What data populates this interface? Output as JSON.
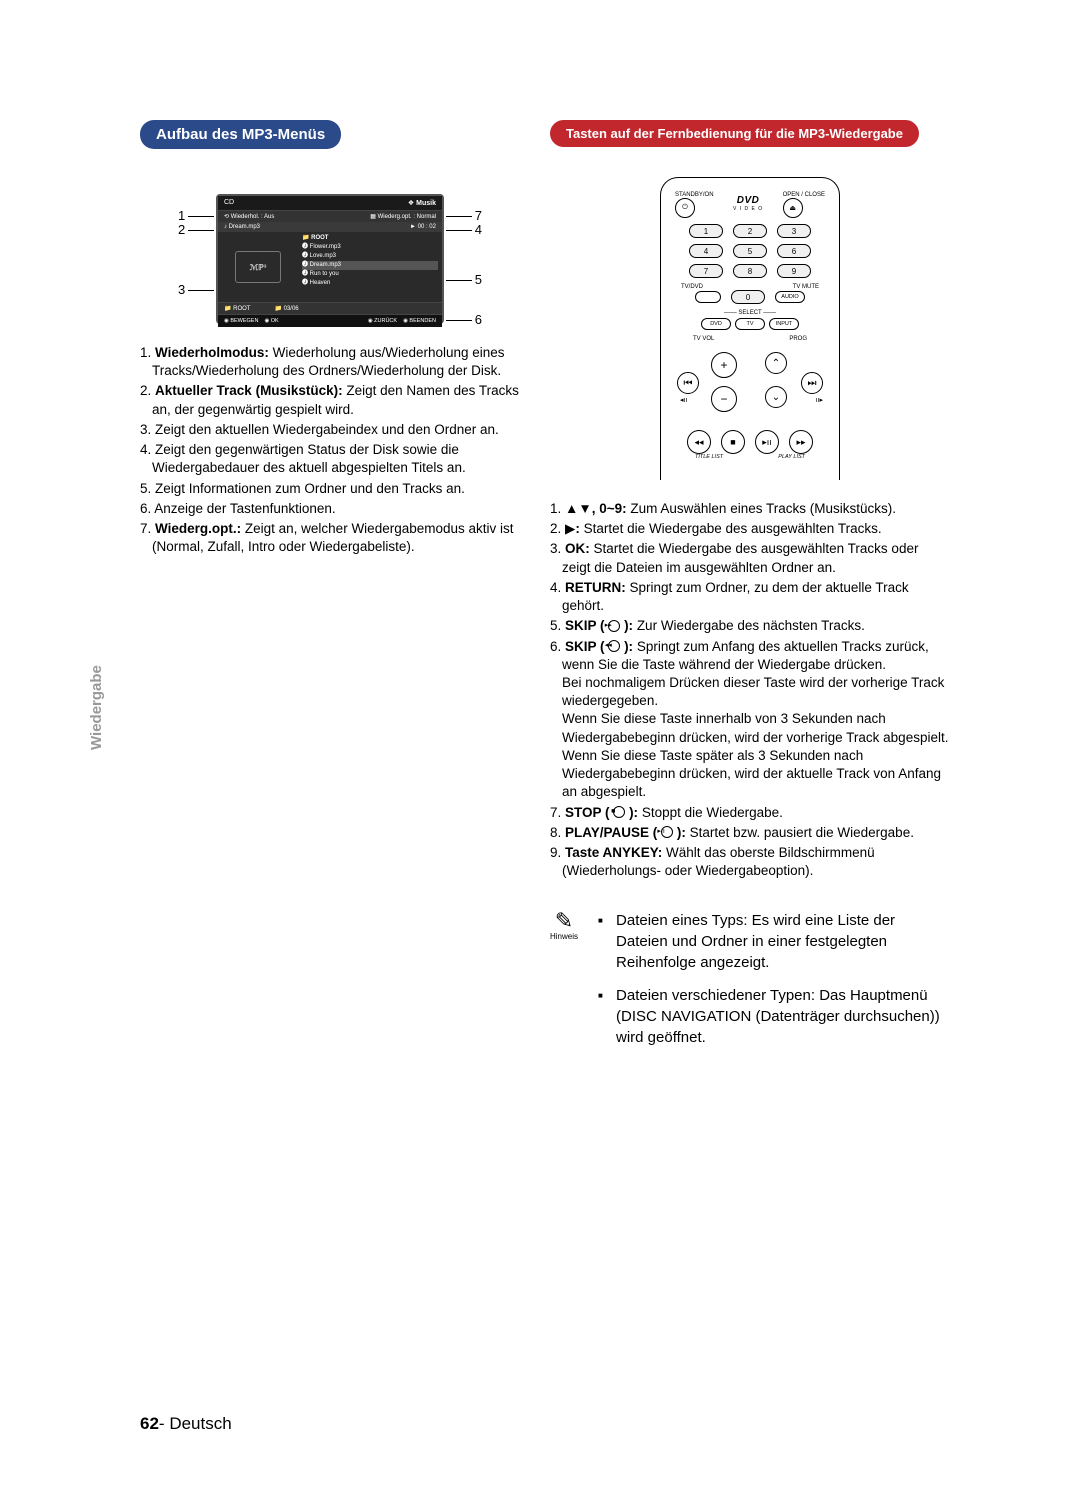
{
  "page": {
    "side_tab": "Wiedergabe",
    "footer_num": "62",
    "footer_dash": "- ",
    "footer_lang": "Deutsch"
  },
  "left": {
    "heading": "Aufbau des MP3-Menüs",
    "screen": {
      "top_left": "CD",
      "top_right_icon": "❖",
      "top_right": "Musik",
      "row2_left": "Wiederhol. : Aus",
      "row2_right": "Wiederg.opt. : Normal",
      "row3_left": "Dream.mp3",
      "row3_right": "► 00 : 02",
      "list_root": "ROOT",
      "list1": "Flower.mp3",
      "list2": "Love.mp3",
      "list3": "Dream.mp3",
      "list4": "Run to you",
      "list5": "Heaven",
      "root_left": "ROOT",
      "root_count": "03/06",
      "foot1": "BEWEGEN",
      "foot2": "OK",
      "foot3": "ZURÜCK",
      "foot4": "BEENDEN"
    },
    "callouts": {
      "n1": "1",
      "n2": "2",
      "n3": "3",
      "n4": "4",
      "n5": "5",
      "n6": "6",
      "n7": "7"
    },
    "items": [
      "1. <b>Wiederholmodus:</b> Wiederholung aus/Wiederholung eines Tracks/Wiederholung des Ordners/Wiederholung der Disk.",
      "2. <b>Aktueller Track (Musikstück):</b> Zeigt den Namen des Tracks an, der gegenwärtig gespielt wird.",
      "3. Zeigt den aktuellen Wiedergabeindex und den Ordner an.",
      "4. Zeigt den gegenwärtigen Status der Disk sowie die Wiedergabedauer des aktuell abgespielten Titels an.",
      "5. Zeigt Informationen zum Ordner und den Tracks an.",
      "6. Anzeige der Tastenfunktionen.",
      "7. <b>Wiederg.opt.:</b> Zeigt an, welcher Wiedergabemodus aktiv ist (Normal, Zufall, Intro oder Wiedergabeliste)."
    ]
  },
  "right": {
    "heading": "Tasten auf der Fernbedienung für die MP3-Wiedergabe",
    "remote": {
      "standby": "STANDBY/ON",
      "open": "OPEN / CLOSE",
      "dvd_logo": "DVD",
      "video": "V I D E O",
      "nums": [
        "1",
        "2",
        "3",
        "4",
        "5",
        "6",
        "7",
        "8",
        "9",
        "0"
      ],
      "tvdvd": "TV/DVD",
      "tvmute": "TV MUTE",
      "audio": "AUDIO",
      "select": "SELECT",
      "sel_dvd": "DVD",
      "sel_tv": "TV",
      "sel_input": "INPUT",
      "tvvol": "TV VOL",
      "prog": "PROG",
      "title": "TITLE LIST",
      "play": "PLAY LIST"
    },
    "items": [
      "1. <b>▲▼, 0~9:</b> Zum Auswählen eines Tracks (Musikstücks).",
      "2. ▶<b>:</b> Startet die Wiedergabe des ausgewählten Tracks.",
      "3. <b>OK:</b> Startet die Wiedergabe des ausgewählten Tracks oder zeigt die Dateien im ausgewählten Ordner an.",
      "4. <b>RETURN:</b> Springt zum Ordner, zu dem der aktuelle Track gehört.",
      "5. <b>SKIP (</b> <span class=\"small-icon\">▸▸</span> <b>):</b> Zur Wiedergabe des nächsten Tracks.",
      "6. <b>SKIP (</b> <span class=\"small-icon\">◂◂</span> <b>):</b> Springt zum Anfang des aktuellen Tracks zurück, wenn Sie die Taste während der Wiedergabe drücken.<br>Bei nochmaligem Drücken dieser Taste wird der vorherige Track wiedergegeben.<br>Wenn Sie diese Taste innerhalb von 3 Sekunden nach Wiedergabebeginn drücken, wird der vorherige Track abgespielt. Wenn Sie diese Taste später als 3 Sekunden nach Wiedergabebeginn drücken, wird der aktuelle Track von Anfang an abgespielt.",
      "7. <b>STOP (</b> <span class=\"small-icon\">■</span> <b>):</b> Stoppt die Wiedergabe.",
      "8. <b>PLAY/PAUSE (</b> <span class=\"small-icon\">▸ıı</span> <b>):</b> Startet bzw. pausiert die Wiedergabe.",
      "9. <b>Taste ANYKEY:</b> Wählt das oberste Bildschirmmenü (Wiederholungs- oder Wiedergabeoption)."
    ],
    "note_label": "Hinweis",
    "notes": [
      "Dateien eines Typs: Es wird eine Liste der Dateien und Ordner in einer festgelegten Reihenfolge angezeigt.",
      "Dateien verschiedener Typen: Das Hauptmenü (DISC NAVIGATION (Datenträger durchsuchen)) wird geöffnet."
    ]
  }
}
